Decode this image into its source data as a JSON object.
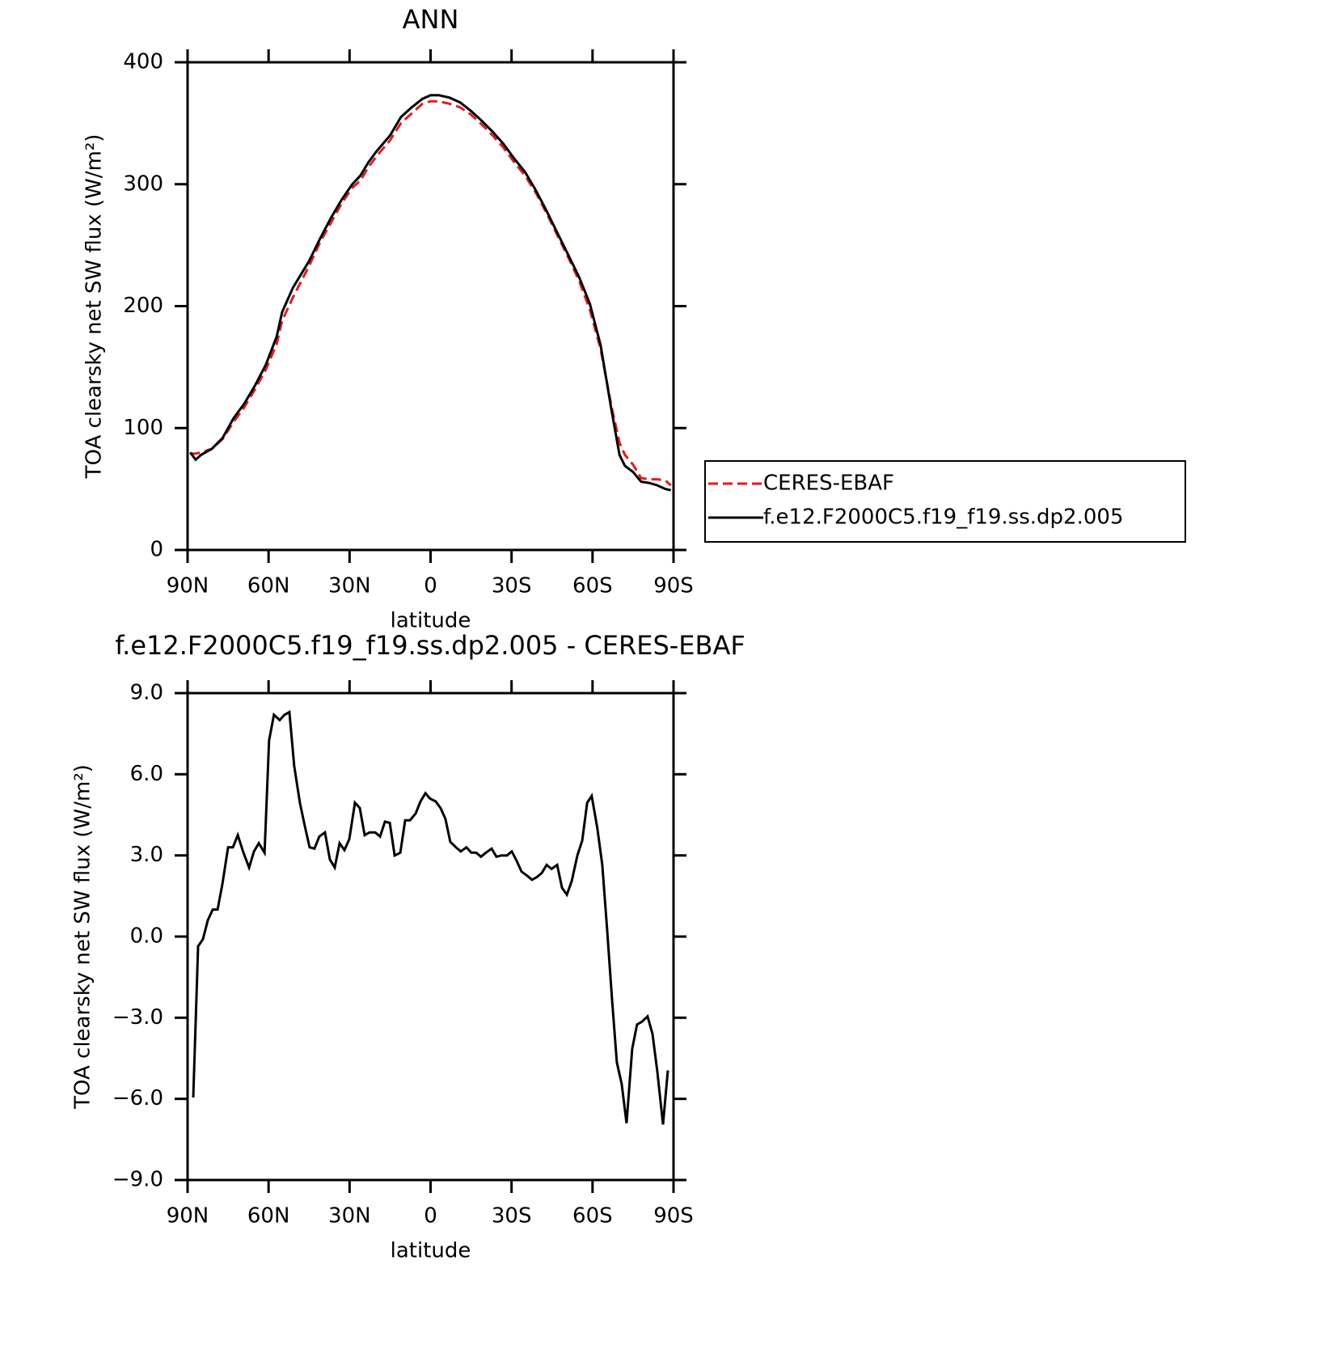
{
  "chart_data": [
    {
      "type": "line",
      "title": "ANN",
      "x_label": "latitude",
      "y_label": "TOA clearsky net SW flux (W/m²)",
      "xlim": [
        90,
        -90
      ],
      "xticks": [
        {
          "value": 90,
          "label": "90N"
        },
        {
          "value": 60,
          "label": "60N"
        },
        {
          "value": 30,
          "label": "30N"
        },
        0,
        {
          "value": -30,
          "label": "30S"
        },
        {
          "value": -60,
          "label": "60S"
        },
        {
          "value": -90,
          "label": "90S"
        }
      ],
      "ylim": [
        0,
        400
      ],
      "yticks": [
        0,
        100,
        200,
        300,
        400
      ],
      "legend": "right",
      "x": [
        89,
        87,
        85,
        81,
        77,
        73,
        69,
        65,
        61,
        57,
        55,
        51,
        45,
        41,
        37,
        33,
        29,
        26,
        23,
        20,
        15,
        11,
        7,
        3,
        0,
        -3,
        -7,
        -11,
        -15,
        -19,
        -23,
        -27,
        -31,
        -35,
        -39,
        -43,
        -47,
        -51,
        -55,
        -59,
        -63,
        -67,
        -70,
        -72,
        -75,
        -78,
        -81,
        -84,
        -87,
        -89
      ],
      "series": [
        {
          "name": "CERES-EBAF",
          "color": "#e41a1c",
          "dashed": true,
          "values": [
            79,
            79,
            80,
            83,
            91,
            105,
            117,
            132,
            148,
            169,
            188,
            207,
            233,
            252,
            268,
            284,
            297,
            303,
            314,
            323,
            336,
            350,
            358,
            366,
            368,
            368,
            366,
            363,
            357,
            349,
            340,
            330,
            318,
            307,
            293,
            276,
            258,
            240,
            221,
            197,
            165,
            118,
            88,
            78,
            70,
            59,
            58,
            58,
            57,
            53
          ]
        },
        {
          "name": "f.e12.F2000C5.f19_f19.ss.dp2.005",
          "color": "#000000",
          "dashed": false,
          "values": [
            80,
            74,
            78,
            83,
            92,
            108,
            120,
            135,
            152,
            175,
            195,
            215,
            237,
            255,
            272,
            287,
            300,
            307,
            318,
            327,
            340,
            355,
            363,
            370,
            373,
            373,
            371,
            367,
            360,
            352,
            343,
            333,
            321,
            310,
            295,
            278,
            260,
            242,
            224,
            202,
            168,
            115,
            78,
            69,
            64,
            56,
            55,
            53,
            50,
            49
          ]
        }
      ]
    },
    {
      "type": "line",
      "title": "f.e12.F2000C5.f19_f19.ss.dp2.005 - CERES-EBAF",
      "x_label": "latitude",
      "y_label": "TOA clearsky net SW flux (W/m²)",
      "xlim": [
        90,
        -90
      ],
      "xticks": [
        {
          "value": 90,
          "label": "90N"
        },
        {
          "value": 60,
          "label": "60N"
        },
        {
          "value": 30,
          "label": "30N"
        },
        0,
        {
          "value": -30,
          "label": "30S"
        },
        {
          "value": -60,
          "label": "60S"
        },
        {
          "value": -90,
          "label": "90S"
        }
      ],
      "ylim": [
        -9,
        9
      ],
      "yticks": [
        {
          "value": -9,
          "label": "−9.0"
        },
        {
          "value": -6,
          "label": "−6.0"
        },
        {
          "value": -3,
          "label": "−3.0"
        },
        {
          "value": 0,
          "label": "0.0"
        },
        {
          "value": 3,
          "label": "3.0"
        },
        {
          "value": 6,
          "label": "6.0"
        },
        {
          "value": 9,
          "label": "9.0"
        }
      ],
      "x": [
        87.9,
        86.1,
        84.3,
        82.5,
        80.7,
        78.9,
        77.1,
        75.0,
        73.2,
        71.4,
        69.3,
        67.2,
        65.4,
        63.6,
        61.5,
        59.8,
        58.0,
        55.9,
        54.1,
        52.3,
        50.5,
        48.4,
        46.6,
        44.8,
        43.0,
        41.2,
        39.1,
        37.3,
        35.5,
        33.7,
        31.9,
        30.1,
        28.0,
        26.2,
        24.4,
        22.6,
        20.5,
        18.7,
        16.9,
        15.1,
        13.3,
        11.2,
        9.4,
        7.6,
        5.5,
        3.7,
        1.9,
        0.2,
        -1.9,
        -3.7,
        -5.5,
        -7.3,
        -9.4,
        -11.2,
        -13.3,
        -15.1,
        -16.9,
        -18.7,
        -20.5,
        -22.6,
        -24.4,
        -26.2,
        -28.3,
        -30.1,
        -31.9,
        -33.7,
        -35.8,
        -37.6,
        -39.4,
        -41.2,
        -43.0,
        -44.8,
        -46.9,
        -48.7,
        -50.5,
        -52.3,
        -54.4,
        -56.2,
        -58.0,
        -59.7,
        -61.8,
        -63.6,
        -65.4,
        -67.2,
        -69.0,
        -70.8,
        -72.6,
        -74.7,
        -76.5,
        -78.3,
        -80.4,
        -82.2,
        -84.0,
        -86.1,
        -87.9
      ],
      "series": [
        {
          "name": "f.e12.F2000C5.f19_f19.ss.dp2.005 - CERES-EBAF",
          "color": "#000000",
          "dashed": false,
          "values": [
            -5.95,
            -0.36,
            -0.1,
            0.6,
            1.0,
            1.0,
            1.95,
            3.3,
            3.3,
            3.75,
            3.1,
            2.55,
            3.15,
            3.45,
            3.1,
            7.25,
            8.2,
            8.0,
            8.2,
            8.3,
            6.3,
            4.95,
            4.1,
            3.3,
            3.25,
            3.7,
            3.85,
            2.85,
            2.55,
            3.45,
            3.2,
            3.6,
            4.95,
            4.75,
            3.75,
            3.85,
            3.85,
            3.7,
            4.25,
            4.2,
            3.0,
            3.1,
            4.3,
            4.3,
            4.55,
            5.0,
            5.3,
            5.1,
            5.0,
            4.75,
            4.35,
            3.5,
            3.3,
            3.15,
            3.3,
            3.1,
            3.1,
            2.95,
            3.1,
            3.25,
            2.95,
            3.0,
            3.0,
            3.15,
            2.8,
            2.4,
            2.25,
            2.1,
            2.2,
            2.35,
            2.65,
            2.5,
            2.65,
            1.8,
            1.55,
            2.05,
            3.0,
            3.55,
            4.95,
            5.2,
            4.0,
            2.65,
            0.25,
            -2.3,
            -4.65,
            -5.45,
            -6.9,
            -4.15,
            -3.25,
            -3.15,
            -2.95,
            -3.6,
            -5.0,
            -6.95,
            -4.95
          ]
        }
      ]
    }
  ]
}
